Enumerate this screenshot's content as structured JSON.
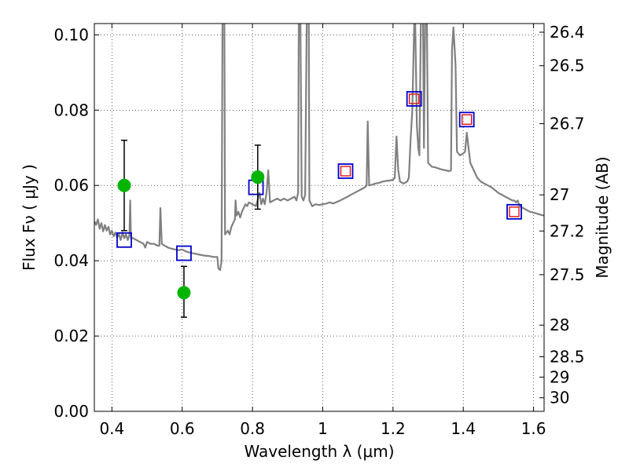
{
  "chart_data": {
    "type": "line",
    "xlabel": "Wavelength  λ (μm)",
    "ylabel": "Flux  Fν  ( μJy )",
    "ylabel_right": "Magnitude (AB)",
    "xlim": [
      0.35,
      1.63
    ],
    "ylim": [
      0.0,
      0.103
    ],
    "grid": true,
    "x_ticks": [
      {
        "value": 0.4,
        "label": "0.4"
      },
      {
        "value": 0.6,
        "label": "0.6"
      },
      {
        "value": 0.8,
        "label": "0.8"
      },
      {
        "value": 1.0,
        "label": "1"
      },
      {
        "value": 1.2,
        "label": "1.2"
      },
      {
        "value": 1.4,
        "label": "1.4"
      },
      {
        "value": 1.6,
        "label": "1.6"
      }
    ],
    "y_ticks": [
      {
        "value": 0.0,
        "label": "0.00"
      },
      {
        "value": 0.02,
        "label": "0.02"
      },
      {
        "value": 0.04,
        "label": "0.04"
      },
      {
        "value": 0.06,
        "label": "0.06"
      },
      {
        "value": 0.08,
        "label": "0.08"
      },
      {
        "value": 0.1,
        "label": "0.10"
      }
    ],
    "mag_ticks": [
      {
        "value": 0.1007,
        "label": "26.4"
      },
      {
        "value": 0.0918,
        "label": "26.5"
      },
      {
        "value": 0.0764,
        "label": "26.7"
      },
      {
        "value": 0.0575,
        "label": "27"
      },
      {
        "value": 0.0479,
        "label": "27.2"
      },
      {
        "value": 0.0363,
        "label": "27.5"
      },
      {
        "value": 0.0229,
        "label": "28"
      },
      {
        "value": 0.0145,
        "label": "28.5"
      },
      {
        "value": 0.0091,
        "label": "29"
      },
      {
        "value": 0.0036,
        "label": "30"
      }
    ],
    "series": [
      {
        "kind": "spectrum",
        "color": "#808080",
        "points": [
          [
            0.35,
            0.0505
          ],
          [
            0.355,
            0.0495
          ],
          [
            0.36,
            0.051
          ],
          [
            0.365,
            0.0485
          ],
          [
            0.37,
            0.05
          ],
          [
            0.375,
            0.0478
          ],
          [
            0.38,
            0.0495
          ],
          [
            0.385,
            0.048
          ],
          [
            0.39,
            0.049
          ],
          [
            0.395,
            0.047
          ],
          [
            0.4,
            0.048
          ],
          [
            0.405,
            0.0465
          ],
          [
            0.41,
            0.0475
          ],
          [
            0.415,
            0.0462
          ],
          [
            0.42,
            0.047
          ],
          [
            0.425,
            0.0455
          ],
          [
            0.43,
            0.0475
          ],
          [
            0.435,
            0.046
          ],
          [
            0.44,
            0.047
          ],
          [
            0.445,
            0.0455
          ],
          [
            0.45,
            0.047
          ],
          [
            0.452,
            0.056
          ],
          [
            0.454,
            0.046
          ],
          [
            0.46,
            0.046
          ],
          [
            0.47,
            0.0455
          ],
          [
            0.48,
            0.045
          ],
          [
            0.49,
            0.0445
          ],
          [
            0.495,
            0.0435
          ],
          [
            0.5,
            0.045
          ],
          [
            0.51,
            0.0445
          ],
          [
            0.52,
            0.0445
          ],
          [
            0.53,
            0.044
          ],
          [
            0.535,
            0.044
          ],
          [
            0.538,
            0.054
          ],
          [
            0.542,
            0.0445
          ],
          [
            0.55,
            0.044
          ],
          [
            0.56,
            0.0435
          ],
          [
            0.57,
            0.0432
          ],
          [
            0.58,
            0.043
          ],
          [
            0.59,
            0.0428
          ],
          [
            0.6,
            0.043
          ],
          [
            0.61,
            0.0425
          ],
          [
            0.62,
            0.0422
          ],
          [
            0.63,
            0.042
          ],
          [
            0.64,
            0.0418
          ],
          [
            0.65,
            0.0416
          ],
          [
            0.66,
            0.0414
          ],
          [
            0.67,
            0.0413
          ],
          [
            0.68,
            0.0412
          ],
          [
            0.69,
            0.041
          ],
          [
            0.7,
            0.041
          ],
          [
            0.703,
            0.038
          ],
          [
            0.708,
            0.0375
          ],
          [
            0.712,
            0.04
          ],
          [
            0.715,
            0.11
          ],
          [
            0.72,
            0.11
          ],
          [
            0.722,
            0.047
          ],
          [
            0.73,
            0.048
          ],
          [
            0.735,
            0.047
          ],
          [
            0.74,
            0.049
          ],
          [
            0.745,
            0.05
          ],
          [
            0.75,
            0.051
          ],
          [
            0.752,
            0.056
          ],
          [
            0.755,
            0.052
          ],
          [
            0.76,
            0.053
          ],
          [
            0.765,
            0.0515
          ],
          [
            0.77,
            0.053
          ],
          [
            0.775,
            0.054
          ],
          [
            0.78,
            0.055
          ],
          [
            0.785,
            0.0545
          ],
          [
            0.79,
            0.0555
          ],
          [
            0.8,
            0.055
          ],
          [
            0.81,
            0.0545
          ],
          [
            0.82,
            0.058
          ],
          [
            0.825,
            0.055
          ],
          [
            0.83,
            0.0565
          ],
          [
            0.835,
            0.055
          ],
          [
            0.84,
            0.058
          ],
          [
            0.845,
            0.064
          ],
          [
            0.85,
            0.0555
          ],
          [
            0.86,
            0.056
          ],
          [
            0.87,
            0.0565
          ],
          [
            0.88,
            0.056
          ],
          [
            0.89,
            0.0565
          ],
          [
            0.9,
            0.056
          ],
          [
            0.91,
            0.0565
          ],
          [
            0.92,
            0.057
          ],
          [
            0.925,
            0.056
          ],
          [
            0.93,
            0.058
          ],
          [
            0.932,
            0.11
          ],
          [
            0.936,
            0.11
          ],
          [
            0.94,
            0.057
          ],
          [
            0.945,
            0.056
          ],
          [
            0.95,
            0.0575
          ],
          [
            0.955,
            0.11
          ],
          [
            0.96,
            0.11
          ],
          [
            0.962,
            0.056
          ],
          [
            0.97,
            0.0545
          ],
          [
            0.98,
            0.055
          ],
          [
            0.99,
            0.0548
          ],
          [
            1.0,
            0.055
          ],
          [
            1.01,
            0.0552
          ],
          [
            1.02,
            0.0555
          ],
          [
            1.03,
            0.0552
          ],
          [
            1.04,
            0.0556
          ],
          [
            1.05,
            0.056
          ],
          [
            1.06,
            0.0565
          ],
          [
            1.07,
            0.057
          ],
          [
            1.08,
            0.0575
          ],
          [
            1.09,
            0.058
          ],
          [
            1.1,
            0.0585
          ],
          [
            1.11,
            0.059
          ],
          [
            1.12,
            0.0595
          ],
          [
            1.125,
            0.06
          ],
          [
            1.128,
            0.077
          ],
          [
            1.132,
            0.06
          ],
          [
            1.14,
            0.0602
          ],
          [
            1.15,
            0.0605
          ],
          [
            1.16,
            0.0607
          ],
          [
            1.17,
            0.061
          ],
          [
            1.18,
            0.0612
          ],
          [
            1.19,
            0.0613
          ],
          [
            1.2,
            0.0615
          ],
          [
            1.205,
            0.062
          ],
          [
            1.21,
            0.073
          ],
          [
            1.215,
            0.064
          ],
          [
            1.22,
            0.061
          ],
          [
            1.23,
            0.0605
          ],
          [
            1.24,
            0.061
          ],
          [
            1.245,
            0.062
          ],
          [
            1.25,
            0.072
          ],
          [
            1.255,
            0.08
          ],
          [
            1.262,
            0.11
          ],
          [
            1.268,
            0.076
          ],
          [
            1.272,
            0.07
          ],
          [
            1.275,
            0.068
          ],
          [
            1.28,
            0.11
          ],
          [
            1.285,
            0.11
          ],
          [
            1.288,
            0.07
          ],
          [
            1.292,
            0.11
          ],
          [
            1.296,
            0.11
          ],
          [
            1.3,
            0.066
          ],
          [
            1.31,
            0.065
          ],
          [
            1.32,
            0.0648
          ],
          [
            1.33,
            0.0645
          ],
          [
            1.34,
            0.0642
          ],
          [
            1.35,
            0.064
          ],
          [
            1.36,
            0.0638
          ],
          [
            1.365,
            0.064
          ],
          [
            1.368,
            0.096
          ],
          [
            1.372,
            0.102
          ],
          [
            1.378,
            0.092
          ],
          [
            1.382,
            0.069
          ],
          [
            1.39,
            0.068
          ],
          [
            1.4,
            0.0685
          ],
          [
            1.405,
            0.069
          ],
          [
            1.41,
            0.074
          ],
          [
            1.415,
            0.07
          ],
          [
            1.42,
            0.066
          ],
          [
            1.43,
            0.064
          ],
          [
            1.44,
            0.062
          ],
          [
            1.45,
            0.061
          ],
          [
            1.46,
            0.0605
          ],
          [
            1.47,
            0.06
          ],
          [
            1.48,
            0.0595
          ],
          [
            1.49,
            0.0588
          ],
          [
            1.5,
            0.058
          ],
          [
            1.51,
            0.0575
          ],
          [
            1.52,
            0.057
          ],
          [
            1.53,
            0.0565
          ],
          [
            1.54,
            0.056
          ],
          [
            1.545,
            0.056
          ],
          [
            1.55,
            0.0555
          ],
          [
            1.555,
            0.056
          ],
          [
            1.56,
            0.0545
          ],
          [
            1.57,
            0.054
          ],
          [
            1.58,
            0.0535
          ],
          [
            1.59,
            0.053
          ],
          [
            1.6,
            0.0528
          ],
          [
            1.61,
            0.0525
          ],
          [
            1.62,
            0.0522
          ],
          [
            1.63,
            0.052
          ]
        ]
      },
      {
        "kind": "model_photometry_blue",
        "marker": "open-square",
        "color": "#0000cc",
        "points": [
          [
            0.435,
            0.0455
          ],
          [
            0.605,
            0.042
          ],
          [
            0.81,
            0.0595
          ],
          [
            1.065,
            0.0638
          ],
          [
            1.26,
            0.083
          ],
          [
            1.41,
            0.0775
          ],
          [
            1.545,
            0.053
          ]
        ]
      },
      {
        "kind": "model_photometry_red",
        "marker": "open-square",
        "color": "#e01010",
        "points": [
          [
            1.065,
            0.0638
          ],
          [
            1.26,
            0.083
          ],
          [
            1.41,
            0.0775
          ],
          [
            1.545,
            0.053
          ]
        ]
      },
      {
        "kind": "observed_photometry",
        "marker": "filled-circle",
        "color": "#00b400",
        "points": [
          {
            "x": 0.435,
            "y": 0.06,
            "err_low": 0.012,
            "err_high": 0.012
          },
          {
            "x": 0.605,
            "y": 0.0315,
            "err_low": 0.0065,
            "err_high": 0.007
          },
          {
            "x": 0.815,
            "y": 0.0622,
            "err_low": 0.0085,
            "err_high": 0.0085
          }
        ]
      }
    ]
  }
}
